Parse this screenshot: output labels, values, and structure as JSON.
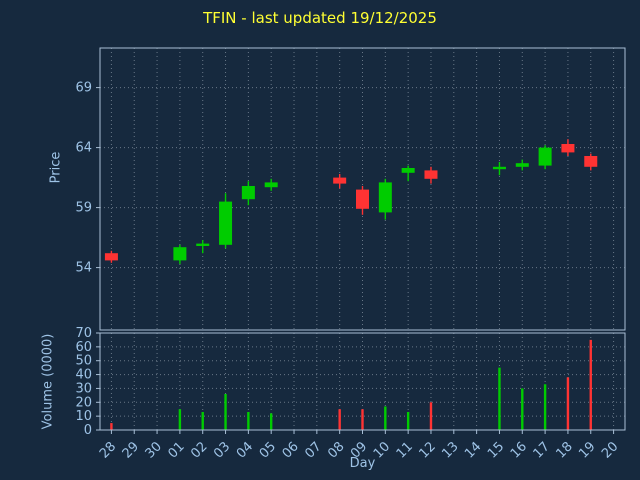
{
  "chart_data": {
    "type": "candlestick",
    "title": "TFIN - last updated 19/12/2025",
    "xlabel": "Day",
    "price_ylabel": "Price",
    "volume_ylabel": "Volume (0000)",
    "x_categories": [
      "28",
      "29",
      "30",
      "01",
      "02",
      "03",
      "04",
      "05",
      "06",
      "07",
      "08",
      "09",
      "10",
      "11",
      "12",
      "13",
      "14",
      "15",
      "16",
      "17",
      "18",
      "19",
      "20"
    ],
    "price_yticks": [
      54,
      59,
      64,
      69
    ],
    "price_ylim": [
      48.8,
      72.3
    ],
    "volume_yticks": [
      0,
      10,
      20,
      30,
      40,
      50,
      60,
      70
    ],
    "volume_ylim": [
      0,
      70
    ],
    "grid": true,
    "legend": false,
    "candles": [
      {
        "day": "28",
        "open": 55.2,
        "high": 55.4,
        "low": 54.4,
        "close": 54.6,
        "volume": 5
      },
      {
        "day": "01",
        "open": 54.6,
        "high": 55.9,
        "low": 54.3,
        "close": 55.7,
        "volume": 15
      },
      {
        "day": "02",
        "open": 55.8,
        "high": 56.3,
        "low": 55.2,
        "close": 56.0,
        "volume": 13
      },
      {
        "day": "03",
        "open": 55.9,
        "high": 60.2,
        "low": 55.6,
        "close": 59.5,
        "volume": 26
      },
      {
        "day": "04",
        "open": 59.7,
        "high": 61.2,
        "low": 59.2,
        "close": 60.8,
        "volume": 13
      },
      {
        "day": "05",
        "open": 60.7,
        "high": 61.4,
        "low": 60.4,
        "close": 61.1,
        "volume": 12
      },
      {
        "day": "08",
        "open": 61.5,
        "high": 61.8,
        "low": 60.6,
        "close": 61.0,
        "volume": 15
      },
      {
        "day": "09",
        "open": 60.5,
        "high": 60.8,
        "low": 58.4,
        "close": 58.9,
        "volume": 15
      },
      {
        "day": "10",
        "open": 58.6,
        "high": 61.4,
        "low": 58.0,
        "close": 61.1,
        "volume": 17
      },
      {
        "day": "11",
        "open": 61.9,
        "high": 62.5,
        "low": 61.2,
        "close": 62.3,
        "volume": 13
      },
      {
        "day": "12",
        "open": 62.1,
        "high": 62.4,
        "low": 61.0,
        "close": 61.4,
        "volume": 20
      },
      {
        "day": "15",
        "open": 62.2,
        "high": 62.8,
        "low": 61.7,
        "close": 62.4,
        "volume": 45
      },
      {
        "day": "16",
        "open": 62.4,
        "high": 63.0,
        "low": 62.1,
        "close": 62.7,
        "volume": 30
      },
      {
        "day": "17",
        "open": 62.5,
        "high": 64.2,
        "low": 62.2,
        "close": 64.0,
        "volume": 33
      },
      {
        "day": "18",
        "open": 64.3,
        "high": 64.7,
        "low": 63.3,
        "close": 63.6,
        "volume": 38
      },
      {
        "day": "19",
        "open": 63.3,
        "high": 63.5,
        "low": 62.1,
        "close": 62.4,
        "volume": 65
      }
    ],
    "colors": {
      "background": "#16293e",
      "up": "#00cc00",
      "down": "#ff3333",
      "grid": "#b9c4d0",
      "tick_label": "#9ec3e6",
      "axis_label": "#9ec3e6",
      "title": "#ffff33",
      "spine": "#a9bfd6"
    }
  }
}
